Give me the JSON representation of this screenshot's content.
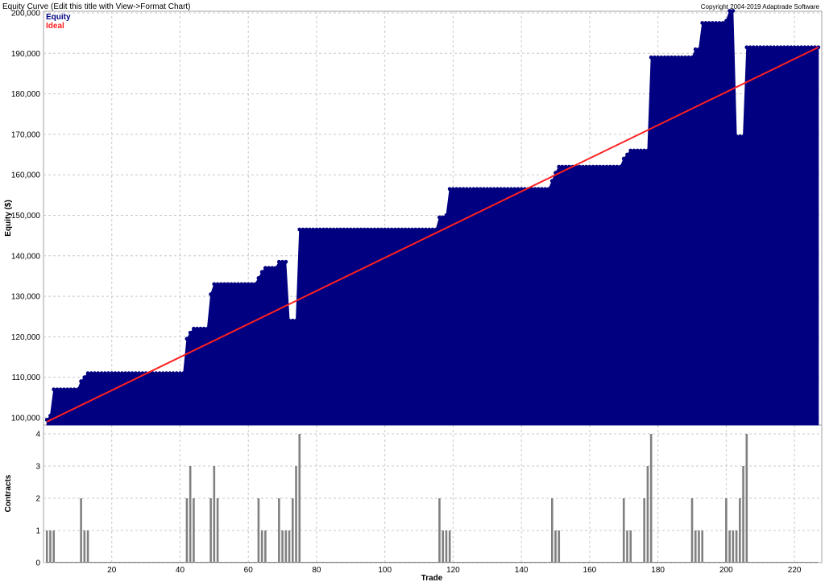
{
  "chart_data": [
    {
      "type": "area",
      "title": "Equity Curve (Edit this title with View->Format Chart)",
      "copyright": "Copyright 2004-2019 Adaptrade Software",
      "ylabel": "Equity ($)",
      "xlim": [
        0,
        228
      ],
      "ylim": [
        99000,
        200000
      ],
      "y_ticks": [
        100000,
        110000,
        120000,
        130000,
        140000,
        150000,
        160000,
        170000,
        180000,
        190000,
        200000
      ],
      "y_tick_labels": [
        "100,000",
        "110,000",
        "120,000",
        "130,000",
        "140,000",
        "150,000",
        "160,000",
        "170,000",
        "180,000",
        "190,000",
        "200,000"
      ],
      "grid": true,
      "legend_position": "top-left",
      "series": [
        {
          "name": "Equity",
          "color": "#000080",
          "style": "area-with-markers",
          "steps": [
            [
              1,
              99500
            ],
            [
              2,
              100500
            ],
            [
              3,
              107000
            ],
            [
              11,
              109000
            ],
            [
              12,
              110000
            ],
            [
              13,
              111000
            ],
            [
              42,
              119500
            ],
            [
              43,
              121000
            ],
            [
              44,
              122000
            ],
            [
              49,
              130500
            ],
            [
              50,
              133000
            ],
            [
              63,
              134500
            ],
            [
              64,
              136000
            ],
            [
              65,
              137000
            ],
            [
              69,
              138500
            ],
            [
              72,
              124000
            ],
            [
              74,
              124000
            ],
            [
              75,
              146500
            ],
            [
              116,
              149500
            ],
            [
              118,
              150000
            ],
            [
              119,
              156500
            ],
            [
              149,
              158500
            ],
            [
              150,
              160500
            ],
            [
              151,
              162000
            ],
            [
              170,
              164000
            ],
            [
              171,
              165000
            ],
            [
              172,
              166000
            ],
            [
              178,
              189000
            ],
            [
              191,
              191000
            ],
            [
              193,
              197500
            ],
            [
              200,
              198000
            ],
            [
              201,
              200500
            ],
            [
              203,
              169500
            ],
            [
              205,
              169500
            ],
            [
              206,
              191500
            ],
            [
              227,
              191500
            ]
          ]
        },
        {
          "name": "Ideal",
          "color": "#ff2020",
          "style": "line",
          "x": [
            1,
            227
          ],
          "y": [
            99000,
            191500
          ]
        }
      ]
    },
    {
      "type": "bar",
      "xlabel": "Trade",
      "ylabel": "Contracts",
      "xlim": [
        0,
        228
      ],
      "ylim": [
        0,
        4.2
      ],
      "x_ticks": [
        20,
        40,
        60,
        80,
        100,
        120,
        140,
        160,
        180,
        200,
        220
      ],
      "x_tick_labels": [
        "20",
        "40",
        "60",
        "80",
        "100",
        "120",
        "140",
        "160",
        "180",
        "200",
        "220"
      ],
      "y_ticks": [
        0,
        1,
        2,
        3,
        4
      ],
      "y_tick_labels": [
        "0",
        "1",
        "2",
        "3",
        "4"
      ],
      "grid": true,
      "color": "#808080",
      "bars": [
        [
          1,
          1
        ],
        [
          2,
          1
        ],
        [
          3,
          1
        ],
        [
          11,
          2
        ],
        [
          12,
          1
        ],
        [
          13,
          1
        ],
        [
          42,
          2
        ],
        [
          43,
          3
        ],
        [
          44,
          2
        ],
        [
          49,
          2
        ],
        [
          50,
          3
        ],
        [
          51,
          2
        ],
        [
          63,
          2
        ],
        [
          64,
          1
        ],
        [
          65,
          1
        ],
        [
          69,
          2
        ],
        [
          70,
          1
        ],
        [
          71,
          1
        ],
        [
          72,
          1
        ],
        [
          73,
          2
        ],
        [
          74,
          3
        ],
        [
          75,
          4
        ],
        [
          116,
          2
        ],
        [
          117,
          1
        ],
        [
          118,
          1
        ],
        [
          119,
          1
        ],
        [
          149,
          2
        ],
        [
          150,
          1
        ],
        [
          151,
          1
        ],
        [
          170,
          2
        ],
        [
          171,
          1
        ],
        [
          172,
          1
        ],
        [
          176,
          2
        ],
        [
          177,
          3
        ],
        [
          178,
          4
        ],
        [
          190,
          2
        ],
        [
          191,
          1
        ],
        [
          192,
          1
        ],
        [
          193,
          1
        ],
        [
          200,
          2
        ],
        [
          201,
          1
        ],
        [
          202,
          1
        ],
        [
          203,
          1
        ],
        [
          204,
          2
        ],
        [
          205,
          3
        ],
        [
          206,
          4
        ]
      ]
    }
  ]
}
